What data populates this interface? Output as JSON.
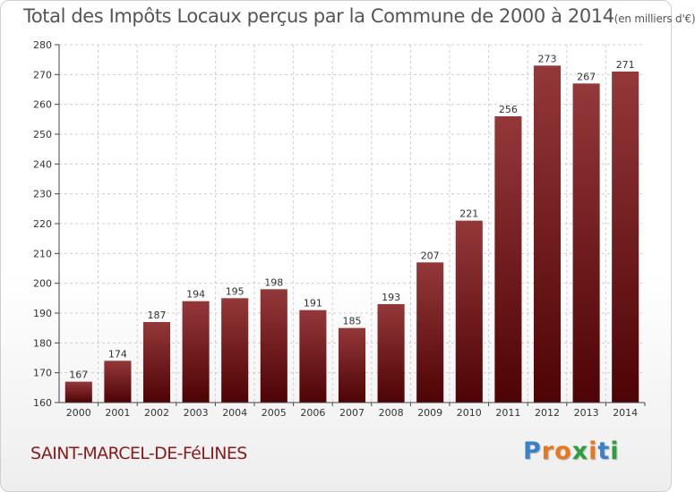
{
  "title": {
    "main": "Total des Impôts Locaux perçus par la Commune de 2000 à 2014",
    "unit": "(en milliers d'€)"
  },
  "commune_name": "SAINT-MARCEL-DE-FéLINES",
  "brand": {
    "letters": [
      "P",
      "r",
      "o",
      "x",
      "i",
      "t",
      "i"
    ],
    "colors": [
      "#3a7fc8",
      "#e8771e",
      "#e8771e",
      "#2e9e3e",
      "#e8771e",
      "#3a7fc8",
      "#2e9e3e"
    ]
  },
  "colors": {
    "bar_light": "#94383a",
    "bar_dark": "#4e0304",
    "grid": "#cfcfcf",
    "axis": "#444444"
  },
  "chart_data": {
    "type": "bar",
    "title": "Total des Impôts Locaux perçus par la Commune de 2000 à 2014 (en milliers d'€)",
    "xlabel": "",
    "ylabel": "",
    "categories": [
      "2000",
      "2001",
      "2002",
      "2003",
      "2004",
      "2005",
      "2006",
      "2007",
      "2008",
      "2009",
      "2010",
      "2011",
      "2012",
      "2013",
      "2014"
    ],
    "values": [
      167,
      174,
      187,
      194,
      195,
      198,
      191,
      185,
      193,
      207,
      221,
      256,
      273,
      267,
      271
    ],
    "ylim": [
      160,
      280
    ],
    "yticks": [
      160,
      170,
      180,
      190,
      200,
      210,
      220,
      230,
      240,
      250,
      260,
      270,
      280
    ],
    "grid": true
  }
}
